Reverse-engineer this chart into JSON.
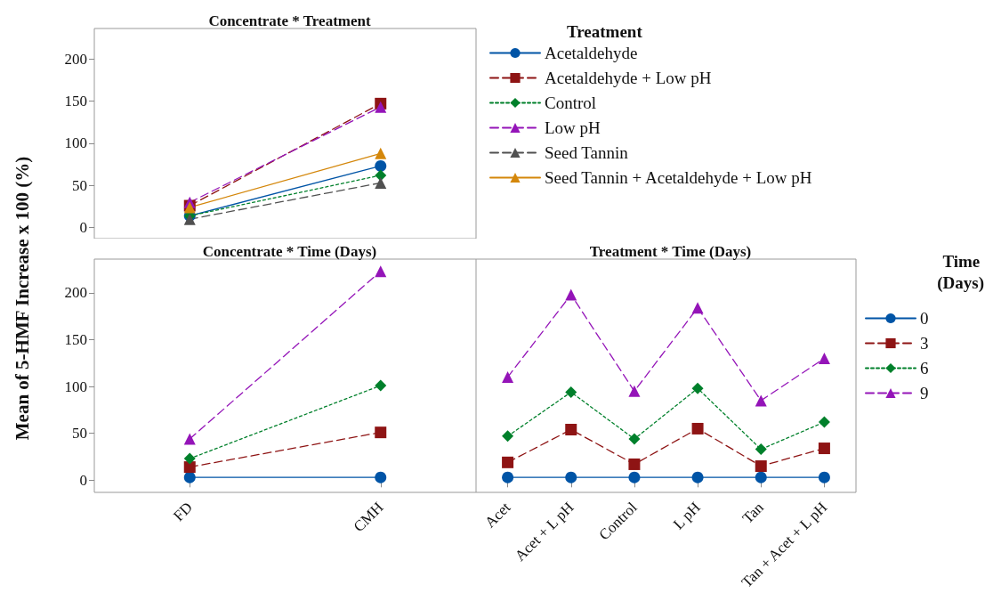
{
  "chart_data": [
    {
      "type": "line",
      "title": "Concentrate * Treatment",
      "legend_title": "Treatment",
      "categories": [
        "FD",
        "CMH"
      ],
      "ylim": [
        -13,
        236
      ],
      "yticks": [
        0,
        50,
        100,
        150,
        200
      ],
      "tick_labels": "y",
      "legend": "right",
      "grid": false,
      "series": [
        {
          "name": "Acetaldehyde",
          "color": "#0054a6",
          "marker": "circle",
          "line_style": "solid",
          "values": [
            14,
            73
          ]
        },
        {
          "name": "Acetaldehyde + Low pH",
          "color": "#8e1414",
          "marker": "square",
          "line_style": "dashed",
          "values": [
            26,
            147
          ]
        },
        {
          "name": "Control",
          "color": "#00802b",
          "marker": "diamond",
          "line_style": "dotted",
          "values": [
            14,
            62
          ]
        },
        {
          "name": "Low pH",
          "color": "#9414b8",
          "marker": "triangle",
          "line_style": "dashed",
          "values": [
            30,
            143
          ]
        },
        {
          "name": "Seed Tannin",
          "color": "#505050",
          "marker": "triangle",
          "line_style": "dashed",
          "values": [
            10,
            53
          ]
        },
        {
          "name": "Seed Tannin + Acetaldehyde + Low pH",
          "color": "#d4870b",
          "marker": "triangle",
          "line_style": "solid",
          "values": [
            24,
            88
          ]
        }
      ]
    },
    {
      "type": "line",
      "title": "Concentrate * Time (Days)",
      "ylabel": "Mean of 5-HMF Increase x 100 (%)",
      "categories": [
        "FD",
        "CMH"
      ],
      "ylim": [
        -13,
        236
      ],
      "yticks": [
        0,
        50,
        100,
        150,
        200
      ],
      "legend": false,
      "grid": false,
      "series": [
        {
          "color": "#0054a6",
          "marker": "circle",
          "line_style": "solid",
          "values": [
            3,
            3
          ]
        },
        {
          "color": "#8e1414",
          "marker": "square",
          "line_style": "dashed",
          "values": [
            14,
            51
          ]
        },
        {
          "color": "#00802b",
          "marker": "diamond",
          "line_style": "dotted",
          "values": [
            23,
            101
          ]
        },
        {
          "color": "#9414b8",
          "marker": "triangle",
          "line_style": "dashed",
          "values": [
            44,
            223
          ]
        }
      ]
    },
    {
      "type": "line",
      "title": "Treatment * Time (Days)",
      "legend_title": "Time (Days)",
      "categories": [
        "Acet",
        "Acet + L pH",
        "Control",
        "L pH",
        "Tan",
        "Tan + Acet + L pH"
      ],
      "ylim": [
        -13,
        236
      ],
      "yticks": [
        0,
        50,
        100,
        150,
        200
      ],
      "tick_labels": "x",
      "legend": "right",
      "grid": false,
      "series": [
        {
          "name": "0",
          "color": "#0054a6",
          "marker": "circle",
          "line_style": "solid",
          "values": [
            3,
            3,
            3,
            3,
            3,
            3
          ]
        },
        {
          "name": "3",
          "color": "#8e1414",
          "marker": "square",
          "line_style": "dashed",
          "values": [
            19,
            54,
            17,
            55,
            15,
            34
          ]
        },
        {
          "name": "6",
          "color": "#00802b",
          "marker": "diamond",
          "line_style": "dotted",
          "values": [
            47,
            94,
            44,
            98,
            33,
            62
          ]
        },
        {
          "name": "9",
          "color": "#9414b8",
          "marker": "triangle",
          "line_style": "dashed",
          "values": [
            110,
            198,
            95,
            184,
            85,
            130
          ]
        }
      ]
    }
  ]
}
